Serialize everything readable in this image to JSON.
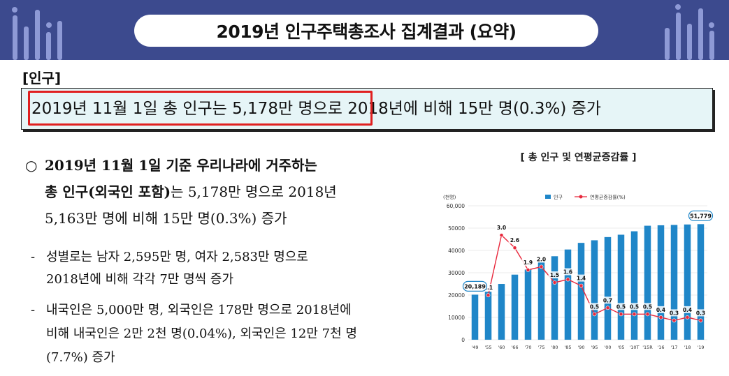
{
  "header": {
    "title": "2019년 인구주택총조사 집계결과 (요약)"
  },
  "section": {
    "label": "[인구]"
  },
  "summary": {
    "text": "2019년 11월 1일 총 인구는 5,178만 명으로 2018년에 비해 15만 명(0.3%) 증가"
  },
  "main_bullet": {
    "marker": "○",
    "line1": "2019년 11월 1일 기준 우리나라에 거주하는",
    "line2_bold": "총 인구(외국인 포함)",
    "line2_rest": "는 5,178만 명으로 2018년",
    "line3": "5,163만 명에 비해 15만 명(0.3%) 증가"
  },
  "sub_bullets": [
    {
      "marker": "-",
      "line1": "성별로는 남자 2,595만 명, 여자 2,583만 명으로",
      "line2": "2018년에 비해 각각 7만 명씩 증가"
    },
    {
      "marker": "-",
      "line1": "내국인은 5,000만 명, 외국인은 178만 명으로 2018년에",
      "line2": "비해 내국인은 2만 2천 명(0.04%), 외국인은 12만 7천 명",
      "line3": "(7.7%) 증가"
    }
  ],
  "chart_data": {
    "type": "bar",
    "title": "[ 총 인구 및 연평균증감률 ]",
    "unit_label": "(천명)",
    "legend": [
      "인구",
      "연평균증감률(%)"
    ],
    "categories": [
      "'49",
      "'55",
      "'60",
      "'66",
      "'70",
      "'75",
      "'80",
      "'85",
      "'90",
      "'95",
      "'00",
      "'05",
      "'10T",
      "'15R",
      "'16",
      "'17",
      "'18",
      "'19"
    ],
    "y_ticks": [
      "0",
      "10000",
      "20000",
      "30000",
      "40000",
      "50000",
      "60,000"
    ],
    "ylim": [
      0,
      60000
    ],
    "series": [
      {
        "name": "인구",
        "values": [
          20189,
          21502,
          24989,
          29160,
          31435,
          34679,
          37406,
          40420,
          43390,
          44553,
          45985,
          47041,
          48580,
          51069,
          51270,
          51423,
          51630,
          51779
        ]
      },
      {
        "name": "연평균증감률(%)",
        "values": [
          null,
          1.1,
          3.0,
          2.6,
          1.9,
          2.0,
          1.5,
          1.6,
          1.4,
          0.5,
          0.7,
          0.5,
          0.5,
          0.5,
          0.4,
          0.3,
          0.4,
          0.3
        ]
      }
    ],
    "rate_labels": [
      "",
      "1.1",
      "3.0",
      "2.6",
      "1.9",
      "2.0",
      "1.5",
      "1.6",
      "1.4",
      "0.5",
      "0.7",
      "0.5",
      "0.5",
      "0.5",
      "0.4",
      "0.3",
      "0.4",
      "0.3"
    ],
    "callouts": [
      {
        "index": 0,
        "label": "20,189"
      },
      {
        "index": 17,
        "label": "51,779"
      }
    ],
    "colors": {
      "bar": "#1f86c8",
      "line": "#e8283c",
      "callout": "#1f86c8"
    }
  }
}
